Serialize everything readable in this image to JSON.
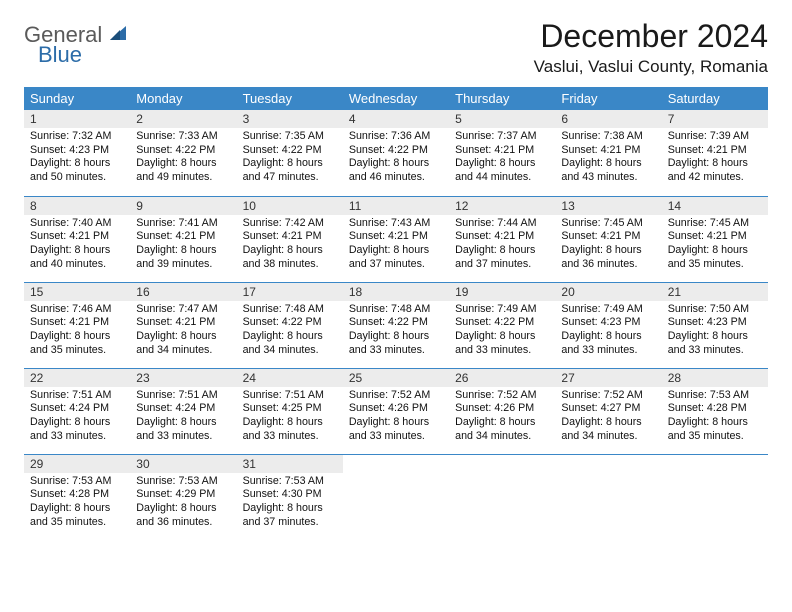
{
  "brand": {
    "name": "General Blue",
    "line1": "General",
    "line2": "Blue"
  },
  "title": "December 2024",
  "location": "Vaslui, Vaslui County, Romania",
  "colors": {
    "header_bg": "#3a87c7",
    "header_fg": "#ffffff",
    "daynum_bg": "#ececec",
    "row_border": "#3a87c7",
    "text": "#111111"
  },
  "fonts": {
    "title_size_pt": 24,
    "location_size_pt": 13,
    "dayheader_size_pt": 10,
    "body_size_pt": 8
  },
  "weekdays": [
    "Sunday",
    "Monday",
    "Tuesday",
    "Wednesday",
    "Thursday",
    "Friday",
    "Saturday"
  ],
  "weeks": [
    [
      {
        "num": "1",
        "sunrise": "Sunrise: 7:32 AM",
        "sunset": "Sunset: 4:23 PM",
        "daylight": "Daylight: 8 hours and 50 minutes."
      },
      {
        "num": "2",
        "sunrise": "Sunrise: 7:33 AM",
        "sunset": "Sunset: 4:22 PM",
        "daylight": "Daylight: 8 hours and 49 minutes."
      },
      {
        "num": "3",
        "sunrise": "Sunrise: 7:35 AM",
        "sunset": "Sunset: 4:22 PM",
        "daylight": "Daylight: 8 hours and 47 minutes."
      },
      {
        "num": "4",
        "sunrise": "Sunrise: 7:36 AM",
        "sunset": "Sunset: 4:22 PM",
        "daylight": "Daylight: 8 hours and 46 minutes."
      },
      {
        "num": "5",
        "sunrise": "Sunrise: 7:37 AM",
        "sunset": "Sunset: 4:21 PM",
        "daylight": "Daylight: 8 hours and 44 minutes."
      },
      {
        "num": "6",
        "sunrise": "Sunrise: 7:38 AM",
        "sunset": "Sunset: 4:21 PM",
        "daylight": "Daylight: 8 hours and 43 minutes."
      },
      {
        "num": "7",
        "sunrise": "Sunrise: 7:39 AM",
        "sunset": "Sunset: 4:21 PM",
        "daylight": "Daylight: 8 hours and 42 minutes."
      }
    ],
    [
      {
        "num": "8",
        "sunrise": "Sunrise: 7:40 AM",
        "sunset": "Sunset: 4:21 PM",
        "daylight": "Daylight: 8 hours and 40 minutes."
      },
      {
        "num": "9",
        "sunrise": "Sunrise: 7:41 AM",
        "sunset": "Sunset: 4:21 PM",
        "daylight": "Daylight: 8 hours and 39 minutes."
      },
      {
        "num": "10",
        "sunrise": "Sunrise: 7:42 AM",
        "sunset": "Sunset: 4:21 PM",
        "daylight": "Daylight: 8 hours and 38 minutes."
      },
      {
        "num": "11",
        "sunrise": "Sunrise: 7:43 AM",
        "sunset": "Sunset: 4:21 PM",
        "daylight": "Daylight: 8 hours and 37 minutes."
      },
      {
        "num": "12",
        "sunrise": "Sunrise: 7:44 AM",
        "sunset": "Sunset: 4:21 PM",
        "daylight": "Daylight: 8 hours and 37 minutes."
      },
      {
        "num": "13",
        "sunrise": "Sunrise: 7:45 AM",
        "sunset": "Sunset: 4:21 PM",
        "daylight": "Daylight: 8 hours and 36 minutes."
      },
      {
        "num": "14",
        "sunrise": "Sunrise: 7:45 AM",
        "sunset": "Sunset: 4:21 PM",
        "daylight": "Daylight: 8 hours and 35 minutes."
      }
    ],
    [
      {
        "num": "15",
        "sunrise": "Sunrise: 7:46 AM",
        "sunset": "Sunset: 4:21 PM",
        "daylight": "Daylight: 8 hours and 35 minutes."
      },
      {
        "num": "16",
        "sunrise": "Sunrise: 7:47 AM",
        "sunset": "Sunset: 4:21 PM",
        "daylight": "Daylight: 8 hours and 34 minutes."
      },
      {
        "num": "17",
        "sunrise": "Sunrise: 7:48 AM",
        "sunset": "Sunset: 4:22 PM",
        "daylight": "Daylight: 8 hours and 34 minutes."
      },
      {
        "num": "18",
        "sunrise": "Sunrise: 7:48 AM",
        "sunset": "Sunset: 4:22 PM",
        "daylight": "Daylight: 8 hours and 33 minutes."
      },
      {
        "num": "19",
        "sunrise": "Sunrise: 7:49 AM",
        "sunset": "Sunset: 4:22 PM",
        "daylight": "Daylight: 8 hours and 33 minutes."
      },
      {
        "num": "20",
        "sunrise": "Sunrise: 7:49 AM",
        "sunset": "Sunset: 4:23 PM",
        "daylight": "Daylight: 8 hours and 33 minutes."
      },
      {
        "num": "21",
        "sunrise": "Sunrise: 7:50 AM",
        "sunset": "Sunset: 4:23 PM",
        "daylight": "Daylight: 8 hours and 33 minutes."
      }
    ],
    [
      {
        "num": "22",
        "sunrise": "Sunrise: 7:51 AM",
        "sunset": "Sunset: 4:24 PM",
        "daylight": "Daylight: 8 hours and 33 minutes."
      },
      {
        "num": "23",
        "sunrise": "Sunrise: 7:51 AM",
        "sunset": "Sunset: 4:24 PM",
        "daylight": "Daylight: 8 hours and 33 minutes."
      },
      {
        "num": "24",
        "sunrise": "Sunrise: 7:51 AM",
        "sunset": "Sunset: 4:25 PM",
        "daylight": "Daylight: 8 hours and 33 minutes."
      },
      {
        "num": "25",
        "sunrise": "Sunrise: 7:52 AM",
        "sunset": "Sunset: 4:26 PM",
        "daylight": "Daylight: 8 hours and 33 minutes."
      },
      {
        "num": "26",
        "sunrise": "Sunrise: 7:52 AM",
        "sunset": "Sunset: 4:26 PM",
        "daylight": "Daylight: 8 hours and 34 minutes."
      },
      {
        "num": "27",
        "sunrise": "Sunrise: 7:52 AM",
        "sunset": "Sunset: 4:27 PM",
        "daylight": "Daylight: 8 hours and 34 minutes."
      },
      {
        "num": "28",
        "sunrise": "Sunrise: 7:53 AM",
        "sunset": "Sunset: 4:28 PM",
        "daylight": "Daylight: 8 hours and 35 minutes."
      }
    ],
    [
      {
        "num": "29",
        "sunrise": "Sunrise: 7:53 AM",
        "sunset": "Sunset: 4:28 PM",
        "daylight": "Daylight: 8 hours and 35 minutes."
      },
      {
        "num": "30",
        "sunrise": "Sunrise: 7:53 AM",
        "sunset": "Sunset: 4:29 PM",
        "daylight": "Daylight: 8 hours and 36 minutes."
      },
      {
        "num": "31",
        "sunrise": "Sunrise: 7:53 AM",
        "sunset": "Sunset: 4:30 PM",
        "daylight": "Daylight: 8 hours and 37 minutes."
      },
      null,
      null,
      null,
      null
    ]
  ]
}
